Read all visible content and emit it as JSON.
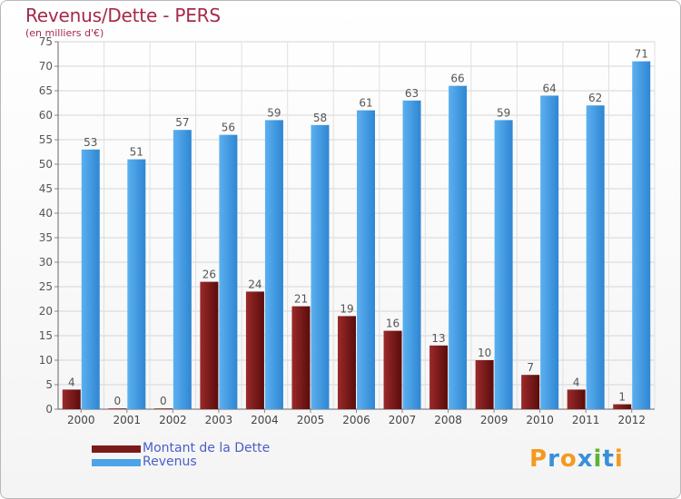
{
  "chart_data": {
    "type": "bar",
    "title": "Revenus/Dette - PERS",
    "subtitle": "(en milliers d'€)",
    "categories": [
      "2000",
      "2001",
      "2002",
      "2003",
      "2004",
      "2005",
      "2006",
      "2007",
      "2008",
      "2009",
      "2010",
      "2011",
      "2012"
    ],
    "series": [
      {
        "name": "Montant de la Dette",
        "values": [
          4,
          0,
          0,
          26,
          24,
          21,
          19,
          16,
          13,
          10,
          7,
          4,
          1
        ],
        "color": "#7a1b1b"
      },
      {
        "name": "Revenus",
        "values": [
          53,
          51,
          57,
          56,
          59,
          58,
          61,
          63,
          66,
          59,
          64,
          62,
          71
        ],
        "color": "#4da3e8"
      }
    ],
    "ylim": [
      0,
      75
    ],
    "yticks": [
      0,
      5,
      10,
      15,
      20,
      25,
      30,
      35,
      40,
      45,
      50,
      55,
      60,
      65,
      70,
      75
    ],
    "grid": true,
    "legend_position": "bottom-left"
  },
  "branding": {
    "logo_text": "Proxiti",
    "logo_colors": [
      "#f39a1e",
      "#3a8fd9",
      "#f39a1e",
      "#3a8fd9",
      "#5cb531",
      "#3a8fd9",
      "#f39a1e"
    ]
  }
}
